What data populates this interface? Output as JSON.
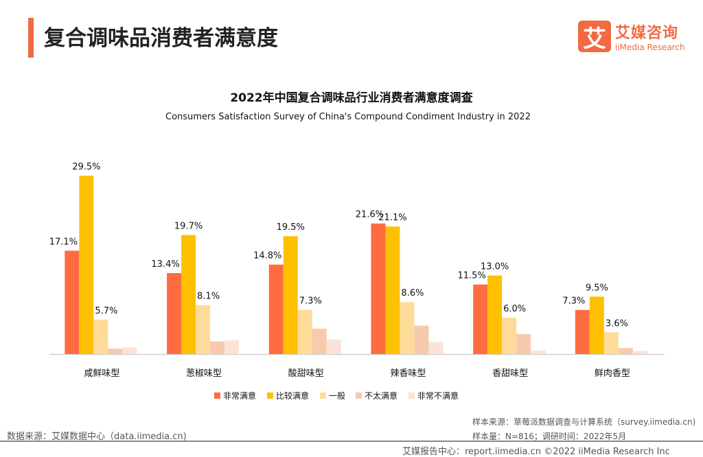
{
  "header": {
    "title": "复合调味品消费者满意度",
    "logo_mark": "艾",
    "logo_cn": "艾媒咨询",
    "logo_en": "iiMedia Research"
  },
  "chart_data": {
    "type": "bar",
    "title": "2022年中国复合调味品行业消费者满意度调查",
    "subtitle": "Consumers Satisfaction Survey of China's Compound Condiment Industry in 2022",
    "categories": [
      "咸鲜味型",
      "葱椒味型",
      "酸甜味型",
      "辣香味型",
      "香甜味型",
      "鲜肉香型"
    ],
    "ylim": [
      0,
      32
    ],
    "grid": false,
    "legend_position": "bottom",
    "series": [
      {
        "name": "非常满意",
        "color": "#ff6c40",
        "values": [
          17.1,
          13.4,
          14.8,
          21.6,
          11.5,
          7.3
        ],
        "labeled": true
      },
      {
        "name": "比较满意",
        "color": "#ffc000",
        "values": [
          29.5,
          19.7,
          19.5,
          21.1,
          13.0,
          9.5
        ],
        "labeled": true
      },
      {
        "name": "一般",
        "color": "#ffdb9a",
        "values": [
          5.7,
          8.1,
          7.3,
          8.6,
          6.0,
          3.6
        ],
        "labeled": true
      },
      {
        "name": "不太满意",
        "color": "#f7caad",
        "values": [
          0.9,
          2.1,
          4.2,
          4.7,
          3.3,
          1.0
        ],
        "labeled": false
      },
      {
        "name": "非常不满意",
        "color": "#fae3d6",
        "values": [
          1.1,
          2.3,
          2.4,
          2.0,
          0.6,
          0.5
        ],
        "labeled": false
      }
    ]
  },
  "footer": {
    "source": "数据来源：艾媒数据中心（data.iimedia.cn)",
    "sample_source": "样本来源：草莓派数据调查与计算系统（survey.iimedia.cn)",
    "sample_size": "样本量：N=816；调研时间：2022年5月",
    "report": "艾媒报告中心：report.iimedia.cn   ©2022  iiMedia Research  Inc"
  }
}
